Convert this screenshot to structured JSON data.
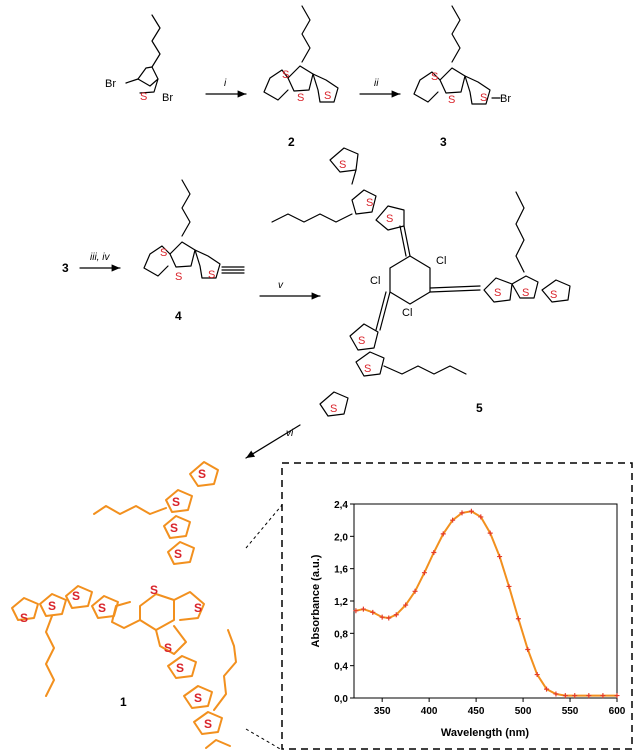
{
  "compounds": {
    "c1": "1",
    "c2": "2",
    "c3": "3",
    "c4": "4",
    "c5": "5",
    "start_ref": "3"
  },
  "reagents": {
    "i": "i",
    "ii": "ii",
    "iii_iv": "iii, iv",
    "v": "v",
    "vi": "vi"
  },
  "atoms": {
    "S": "S",
    "Br": "Br",
    "Cl": "Cl"
  },
  "chart_data": {
    "type": "line",
    "xlabel": "Wavelength (nm)",
    "ylabel": "Absorbance (a.u.)",
    "xlim": [
      320,
      600
    ],
    "ylim": [
      0,
      2.4
    ],
    "x_ticks": [
      "350",
      "400",
      "450",
      "500",
      "550",
      "600"
    ],
    "y_ticks": [
      "0,0",
      "0,4",
      "0,8",
      "1,2",
      "1,6",
      "2,0",
      "2,4"
    ],
    "series": [
      {
        "color": "#f2901e",
        "marker_color": "#e43b2a",
        "x": [
          322,
          330,
          340,
          350,
          357,
          365,
          375,
          385,
          395,
          405,
          415,
          425,
          435,
          445,
          455,
          465,
          475,
          485,
          495,
          505,
          515,
          525,
          535,
          545,
          555,
          570,
          585,
          600
        ],
        "y": [
          1.08,
          1.1,
          1.06,
          1.0,
          0.99,
          1.03,
          1.15,
          1.32,
          1.55,
          1.8,
          2.03,
          2.2,
          2.29,
          2.31,
          2.24,
          2.04,
          1.75,
          1.38,
          0.98,
          0.6,
          0.29,
          0.11,
          0.05,
          0.03,
          0.03,
          0.03,
          0.03,
          0.03
        ]
      }
    ]
  }
}
